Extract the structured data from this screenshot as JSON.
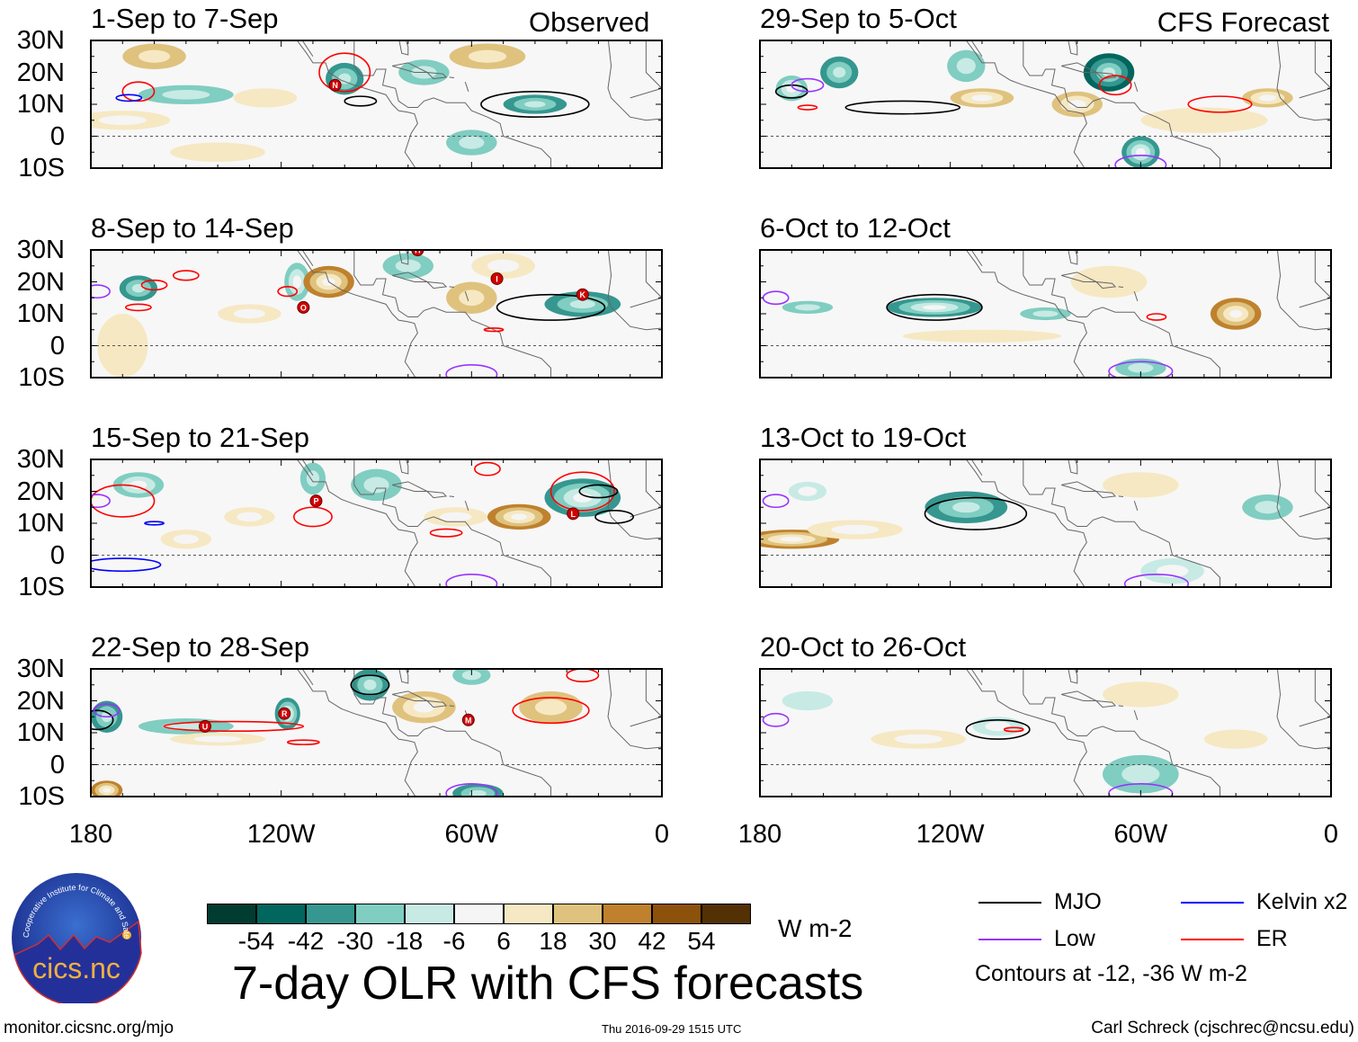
{
  "header": {
    "observed_label": "Observed",
    "forecast_label": "CFS Forecast"
  },
  "axes": {
    "lat_labels": [
      "30N",
      "20N",
      "10N",
      "0",
      "10S"
    ],
    "lat_values": [
      30,
      20,
      10,
      0,
      -10
    ],
    "lon_labels": [
      "180",
      "120W",
      "60W",
      "0"
    ],
    "lon_values": [
      -180,
      -120,
      -60,
      0
    ]
  },
  "colorbar": {
    "levels": [
      "-54",
      "-42",
      "-30",
      "-18",
      "-6",
      "6",
      "18",
      "30",
      "42",
      "54"
    ],
    "colors": [
      "#003c30",
      "#01665e",
      "#35978f",
      "#80cdc1",
      "#c7eae5",
      "#f5f5f5",
      "#f6e8c3",
      "#dfc27d",
      "#bf812d",
      "#8c510a",
      "#543005"
    ],
    "units": "W m-2"
  },
  "legend": {
    "items": [
      {
        "label": "MJO",
        "color": "#000000"
      },
      {
        "label": "Kelvin x2",
        "color": "#0000ff"
      },
      {
        "label": "Low",
        "color": "#9933ff"
      },
      {
        "label": "ER",
        "color": "#ff0000"
      }
    ],
    "note": "Contours at -12, -36 W m-2"
  },
  "footer": {
    "title": "7-day OLR with CFS forecasts",
    "url": "monitor.cicsnc.org/mjo",
    "timestamp": "Thu 2016-09-29 1515 UTC",
    "author": "Carl Schreck (cjschrec@ncsu.edu)",
    "logo_text": "cics.nc",
    "logo_ring_text": "Cooperative Institute for Climate and Satellites"
  },
  "chart_data": {
    "type": "heatmap",
    "title": "7-day OLR with CFS forecasts",
    "units": "W m-2",
    "xlim": [
      -180,
      0
    ],
    "ylim": [
      -10,
      30
    ],
    "panels": [
      {
        "title": "1-Sep to 7-Sep",
        "kind": "observed",
        "anomalies": [
          [
            -160,
            25,
            10,
            4,
            20
          ],
          [
            -150,
            13,
            15,
            3,
            -20
          ],
          [
            -100,
            18,
            6,
            5,
            -30
          ],
          [
            -75,
            20,
            8,
            4,
            -20
          ],
          [
            -55,
            25,
            12,
            4,
            20
          ],
          [
            -40,
            10,
            10,
            3,
            -30
          ],
          [
            -170,
            5,
            15,
            3,
            18
          ],
          [
            -60,
            -2,
            8,
            4,
            -20
          ],
          [
            -125,
            12,
            10,
            3,
            10
          ],
          [
            -140,
            -5,
            15,
            3,
            12
          ]
        ],
        "contours": [
          [
            "ER",
            -100,
            20,
            8,
            6
          ],
          [
            "ER",
            -165,
            14,
            5,
            3
          ],
          [
            "MJO",
            -95,
            11,
            5,
            1.5
          ],
          [
            "MJO",
            -40,
            10,
            17,
            4
          ],
          [
            "Kelvin",
            -168,
            12,
            4,
            1
          ]
        ],
        "cyclones": [
          [
            "N",
            -103,
            16
          ]
        ]
      },
      {
        "title": "8-Sep to 14-Sep",
        "kind": "observed",
        "anomalies": [
          [
            -165,
            18,
            6,
            4,
            -30
          ],
          [
            -115,
            20,
            4,
            6,
            -25
          ],
          [
            -105,
            20,
            8,
            5,
            40
          ],
          [
            -80,
            25,
            8,
            4,
            -20
          ],
          [
            -130,
            10,
            10,
            3,
            15
          ],
          [
            -25,
            13,
            12,
            4,
            -30
          ],
          [
            -60,
            15,
            8,
            5,
            20
          ],
          [
            -170,
            0,
            8,
            10,
            12
          ],
          [
            -50,
            25,
            10,
            4,
            15
          ]
        ],
        "contours": [
          [
            "MJO",
            -35,
            12,
            17,
            4
          ],
          [
            "ER",
            -160,
            19,
            4,
            1.5
          ],
          [
            "ER",
            -150,
            22,
            4,
            1.5
          ],
          [
            "ER",
            -165,
            12,
            4,
            1
          ],
          [
            "ER",
            -118,
            17,
            3,
            1.5
          ],
          [
            "ER",
            -53,
            5,
            3,
            0.5
          ],
          [
            "Low",
            -178,
            17,
            4,
            2
          ],
          [
            "Low",
            -60,
            -9,
            8,
            3
          ]
        ],
        "cyclones": [
          [
            "O",
            -113,
            12
          ],
          [
            "I",
            -52,
            21
          ],
          [
            "K",
            -25,
            16
          ],
          [
            "H",
            -77,
            30
          ]
        ]
      },
      {
        "title": "15-Sep to 21-Sep",
        "kind": "observed",
        "anomalies": [
          [
            -165,
            22,
            8,
            4,
            -25
          ],
          [
            -90,
            22,
            8,
            5,
            -20
          ],
          [
            -25,
            18,
            12,
            6,
            -40
          ],
          [
            -45,
            12,
            10,
            4,
            40
          ],
          [
            -130,
            12,
            8,
            3,
            15
          ],
          [
            -110,
            24,
            4,
            5,
            -20
          ],
          [
            -150,
            5,
            8,
            3,
            15
          ],
          [
            -65,
            12,
            10,
            3,
            15
          ]
        ],
        "contours": [
          [
            "ER",
            -170,
            17,
            10,
            5
          ],
          [
            "ER",
            -110,
            12,
            6,
            3
          ],
          [
            "ER",
            -25,
            20,
            10,
            6
          ],
          [
            "ER",
            -55,
            27,
            4,
            2
          ],
          [
            "ER",
            -68,
            7,
            5,
            1.2
          ],
          [
            "MJO",
            -20,
            20,
            6,
            2
          ],
          [
            "MJO",
            -15,
            12,
            6,
            2
          ],
          [
            "Kelvin",
            -160,
            10,
            3,
            0.5
          ],
          [
            "Kelvin",
            -170,
            -3,
            12,
            2
          ],
          [
            "Low",
            -178,
            17,
            4,
            2
          ],
          [
            "Low",
            -60,
            -9,
            8,
            3
          ]
        ],
        "cyclones": [
          [
            "P",
            -109,
            17
          ],
          [
            "L",
            -28,
            13
          ]
        ]
      },
      {
        "title": "22-Sep to 28-Sep",
        "kind": "observed",
        "anomalies": [
          [
            -175,
            15,
            5,
            5,
            -35
          ],
          [
            -150,
            12,
            15,
            2.5,
            -20
          ],
          [
            -118,
            16,
            4,
            5,
            -40
          ],
          [
            -92,
            25,
            6,
            5,
            -30
          ],
          [
            -75,
            18,
            10,
            5,
            25
          ],
          [
            -35,
            18,
            10,
            5,
            20
          ],
          [
            -60,
            28,
            6,
            3,
            -20
          ],
          [
            -175,
            -8,
            5,
            3,
            40
          ],
          [
            -58,
            -9,
            8,
            3,
            -30
          ],
          [
            -140,
            8,
            15,
            2,
            15
          ]
        ],
        "contours": [
          [
            "MJO",
            -92,
            25,
            6,
            3
          ],
          [
            "MJO",
            -178,
            14,
            5,
            3
          ],
          [
            "ER",
            -135,
            12,
            22,
            1.5
          ],
          [
            "ER",
            -35,
            17,
            12,
            4
          ],
          [
            "ER",
            -25,
            28,
            5,
            2
          ],
          [
            "ER",
            -113,
            7,
            5,
            0.7
          ],
          [
            "Low",
            -175,
            17,
            4,
            2
          ],
          [
            "Low",
            -60,
            -9,
            8,
            3
          ]
        ],
        "cyclones": [
          [
            "U",
            -144,
            12
          ],
          [
            "R",
            -119,
            16
          ],
          [
            "M",
            -61,
            14
          ]
        ]
      },
      {
        "title": "29-Sep to 5-Oct",
        "kind": "forecast",
        "anomalies": [
          [
            -155,
            20,
            6,
            5,
            -30
          ],
          [
            -170,
            15,
            5,
            4,
            -25
          ],
          [
            -115,
            22,
            6,
            5,
            -20
          ],
          [
            -110,
            12,
            10,
            3,
            30
          ],
          [
            -70,
            20,
            8,
            6,
            -45
          ],
          [
            -80,
            10,
            8,
            4,
            25
          ],
          [
            -20,
            12,
            8,
            3,
            25
          ],
          [
            -60,
            -5,
            6,
            5,
            -40
          ],
          [
            -40,
            5,
            20,
            4,
            10
          ]
        ],
        "contours": [
          [
            "MJO",
            -170,
            14,
            5,
            2
          ],
          [
            "MJO",
            -135,
            9,
            18,
            2
          ],
          [
            "ER",
            -68,
            16,
            5,
            3
          ],
          [
            "ER",
            -35,
            10,
            10,
            2.5
          ],
          [
            "ER",
            -165,
            9,
            3,
            0.7
          ],
          [
            "Low",
            -165,
            16,
            5,
            2
          ],
          [
            "Low",
            -60,
            -9,
            8,
            3
          ]
        ],
        "cyclones": []
      },
      {
        "title": "6-Oct to 12-Oct",
        "kind": "forecast",
        "anomalies": [
          [
            -125,
            12,
            15,
            3,
            -40
          ],
          [
            -90,
            10,
            8,
            2,
            -20
          ],
          [
            -30,
            10,
            8,
            5,
            40
          ],
          [
            -70,
            20,
            12,
            5,
            12
          ],
          [
            -60,
            -7,
            8,
            3,
            -20
          ],
          [
            -165,
            12,
            8,
            2,
            -20
          ],
          [
            -110,
            3,
            25,
            2,
            8
          ]
        ],
        "contours": [
          [
            "MJO",
            -125,
            12,
            15,
            4
          ],
          [
            "ER",
            -55,
            9,
            3,
            1
          ],
          [
            "Low",
            -175,
            15,
            4,
            2
          ],
          [
            "Low",
            -60,
            -8,
            10,
            3
          ]
        ],
        "cyclones": []
      },
      {
        "title": "13-Oct to 19-Oct",
        "kind": "forecast",
        "anomalies": [
          [
            -115,
            15,
            13,
            5,
            -30
          ],
          [
            -170,
            5,
            15,
            3,
            40
          ],
          [
            -150,
            8,
            15,
            3,
            15
          ],
          [
            -165,
            20,
            6,
            3,
            -15
          ],
          [
            -20,
            15,
            8,
            4,
            -20
          ],
          [
            -50,
            -5,
            10,
            4,
            -15
          ],
          [
            -60,
            22,
            12,
            4,
            12
          ]
        ],
        "contours": [
          [
            "MJO",
            -112,
            13,
            16,
            5
          ],
          [
            "Low",
            -175,
            17,
            4,
            2
          ],
          [
            "Low",
            -55,
            -9,
            10,
            3
          ]
        ],
        "cyclones": []
      },
      {
        "title": "20-Oct to 26-Oct",
        "kind": "forecast",
        "anomalies": [
          [
            -130,
            8,
            15,
            3,
            15
          ],
          [
            -105,
            12,
            8,
            3,
            -15
          ],
          [
            -60,
            -3,
            12,
            6,
            -20
          ],
          [
            -60,
            22,
            12,
            4,
            12
          ],
          [
            -165,
            20,
            8,
            3,
            -10
          ],
          [
            -30,
            8,
            10,
            3,
            10
          ]
        ],
        "contours": [
          [
            "MJO",
            -105,
            11,
            10,
            3
          ],
          [
            "ER",
            -100,
            11,
            3,
            0.6
          ],
          [
            "Low",
            -175,
            14,
            4,
            2
          ],
          [
            "Low",
            -60,
            -9,
            10,
            3
          ]
        ],
        "cyclones": []
      }
    ],
    "contour_colors": {
      "MJO": "#000000",
      "Kelvin": "#0000ff",
      "Low": "#9933ff",
      "ER": "#ff0000"
    }
  }
}
